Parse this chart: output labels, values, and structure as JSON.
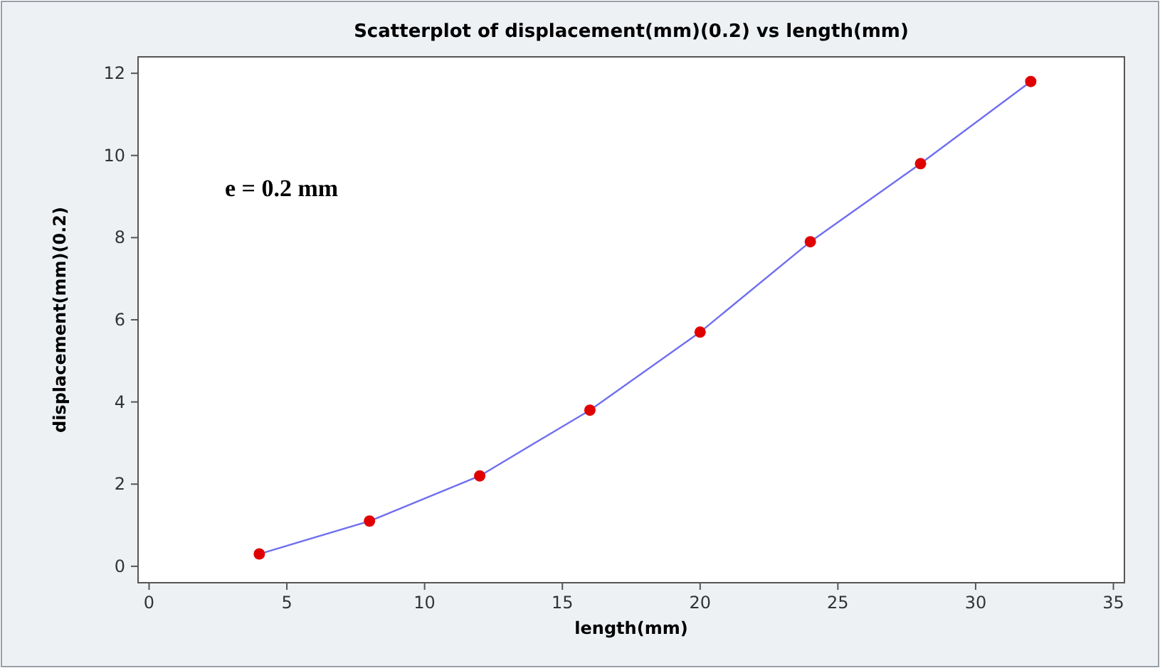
{
  "chart_data": {
    "type": "scatter",
    "title": "Scatterplot of displacement(mm)(0.2) vs length(mm)",
    "xlabel": "length(mm)",
    "ylabel": "displacement(mm)(0.2)",
    "annotations": [
      "e = 0.2 mm"
    ],
    "x": [
      4,
      8,
      12,
      16,
      20,
      24,
      28,
      32
    ],
    "series": [
      {
        "type": "line",
        "color": "#6f6ff0",
        "marker": "none",
        "values": [
          0.3,
          1.1,
          2.2,
          3.8,
          5.7,
          7.9,
          9.8,
          11.8
        ]
      },
      {
        "color": "#e00000",
        "marker": "circle",
        "values": [
          0.3,
          1.1,
          2.2,
          3.8,
          5.7,
          7.9,
          9.8,
          11.8
        ]
      }
    ],
    "xlim": [
      -0.4,
      35.4
    ],
    "ylim": [
      -0.4,
      12.4
    ],
    "xticks": [
      0,
      5,
      10,
      15,
      20,
      25,
      30,
      35
    ],
    "yticks": [
      0,
      2,
      4,
      6,
      8,
      10,
      12
    ],
    "grid": false
  }
}
